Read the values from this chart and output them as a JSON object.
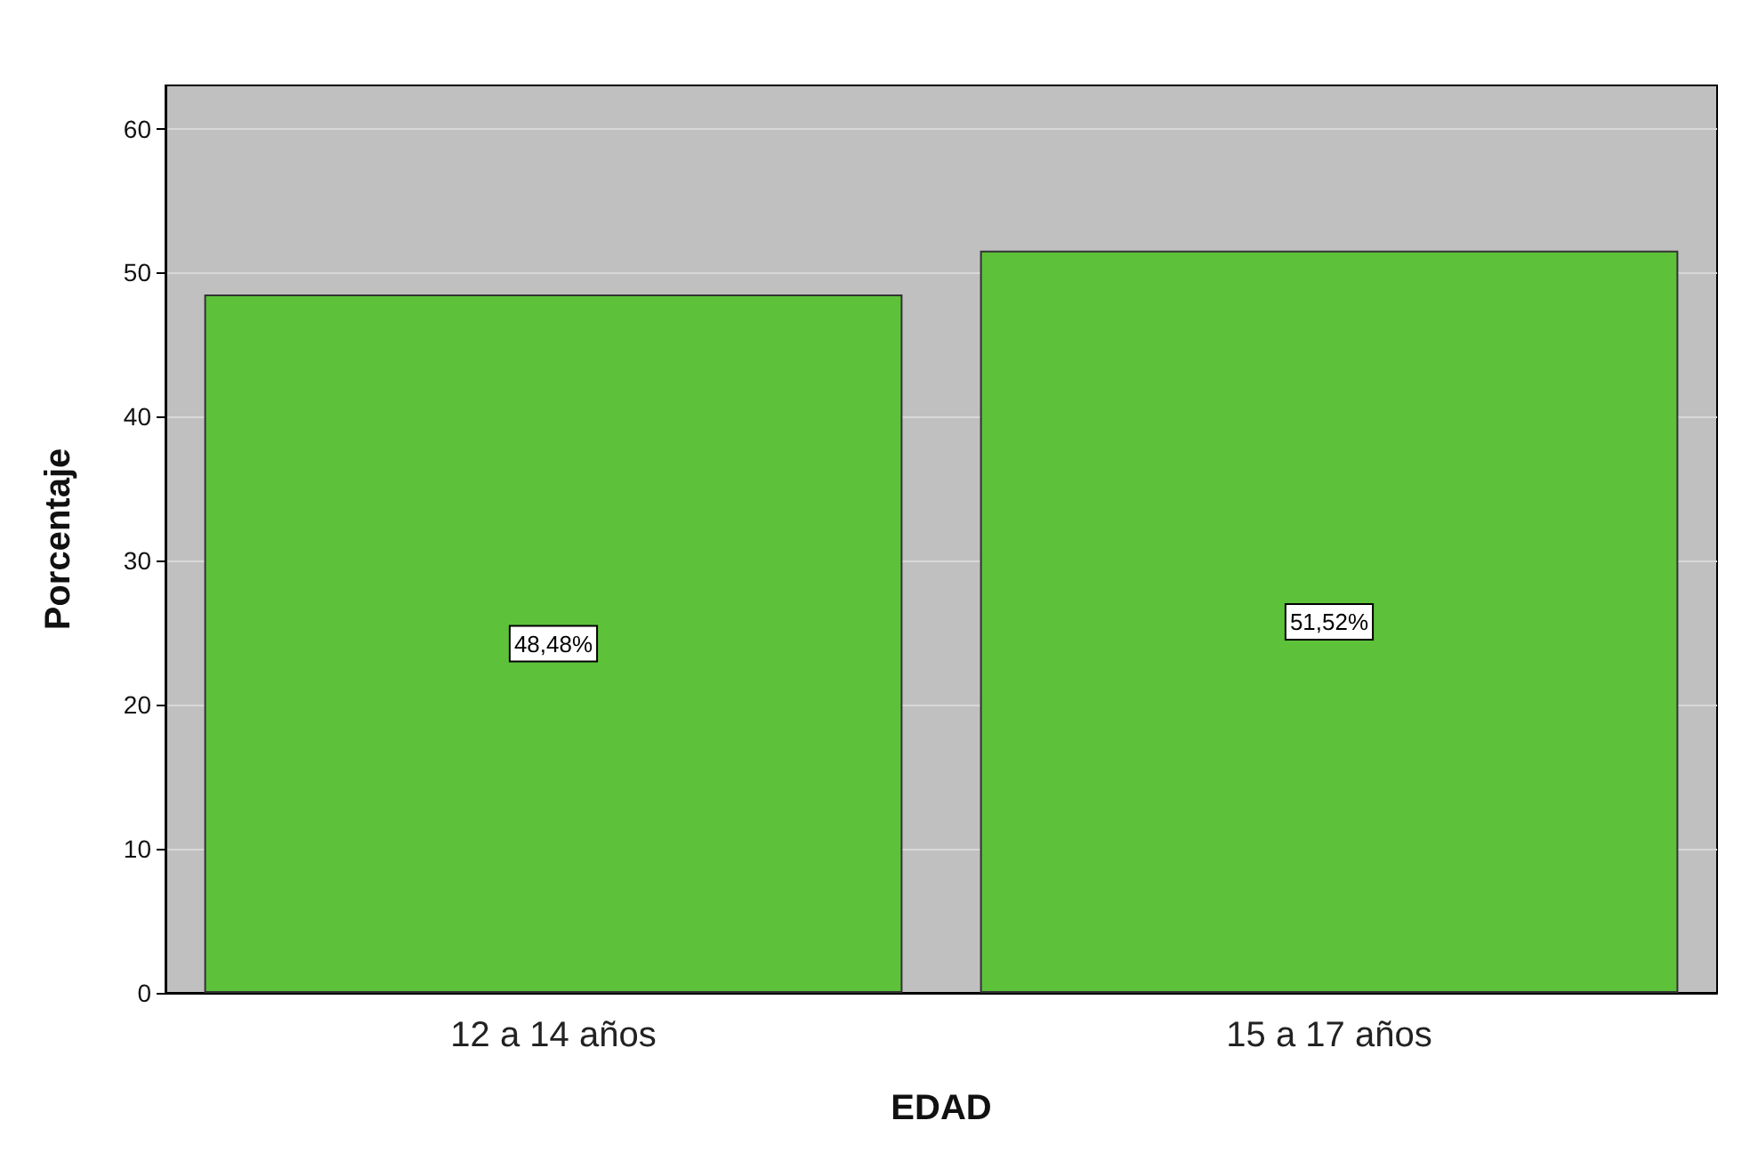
{
  "chart_data": {
    "type": "bar",
    "xlabel": "EDAD",
    "ylabel": "Porcentaje",
    "categories": [
      "12 a 14 años",
      "15 a 17 años"
    ],
    "values": [
      48.48,
      51.52
    ],
    "value_labels": [
      "48,48%",
      "51,52%"
    ],
    "color": "#5dc23a",
    "ylim": [
      0,
      63
    ],
    "yticks": [
      0,
      10,
      20,
      30,
      40,
      50,
      60
    ],
    "grid": "y"
  }
}
